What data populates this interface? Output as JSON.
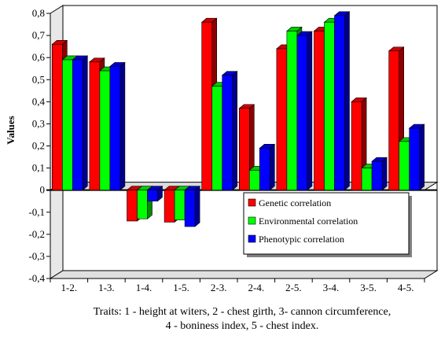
{
  "chart_data": {
    "type": "bar",
    "title": "",
    "ylabel": "Values",
    "xlabel_lines": [
      "Traits: 1 - height at witers, 2 - chest girth, 3- cannon circumference,",
      "4 - boniness index, 5 - chest index."
    ],
    "categories": [
      "1-2.",
      "1-3.",
      "1-4.",
      "1-5.",
      "2-3.",
      "2-4.",
      "2-5.",
      "3-4.",
      "3-5.",
      "4-5."
    ],
    "ylim": [
      -0.4,
      0.8
    ],
    "ytick_values": [
      0.8,
      0.7,
      0.6,
      0.5,
      0.4,
      0.3,
      0.2,
      0.1,
      0,
      -0.1,
      -0.2,
      -0.3,
      -0.4
    ],
    "ytick_labels": [
      "0,8",
      "0,7",
      "0,6",
      "0,5",
      "0,4",
      "0,3",
      "0,2",
      "0,1",
      "0",
      "-0,1",
      "-0,2",
      "-0,3",
      "-0,4"
    ],
    "grid": false,
    "legend_position": "bottom-right",
    "series": [
      {
        "name": "Genetic correlation",
        "color": "#ff0000",
        "values": [
          0.66,
          0.58,
          -0.14,
          -0.145,
          0.76,
          0.37,
          0.64,
          0.72,
          0.4,
          0.63
        ]
      },
      {
        "name": "Environmental correlation",
        "color": "#00ff00",
        "values": [
          0.59,
          0.54,
          -0.13,
          -0.135,
          0.47,
          0.09,
          0.72,
          0.76,
          0.1,
          0.22
        ]
      },
      {
        "name": "Phenotypic correlation",
        "color": "#0000ff",
        "values": [
          0.59,
          0.56,
          -0.05,
          -0.165,
          0.52,
          0.19,
          0.7,
          0.79,
          0.13,
          0.28
        ]
      }
    ]
  }
}
